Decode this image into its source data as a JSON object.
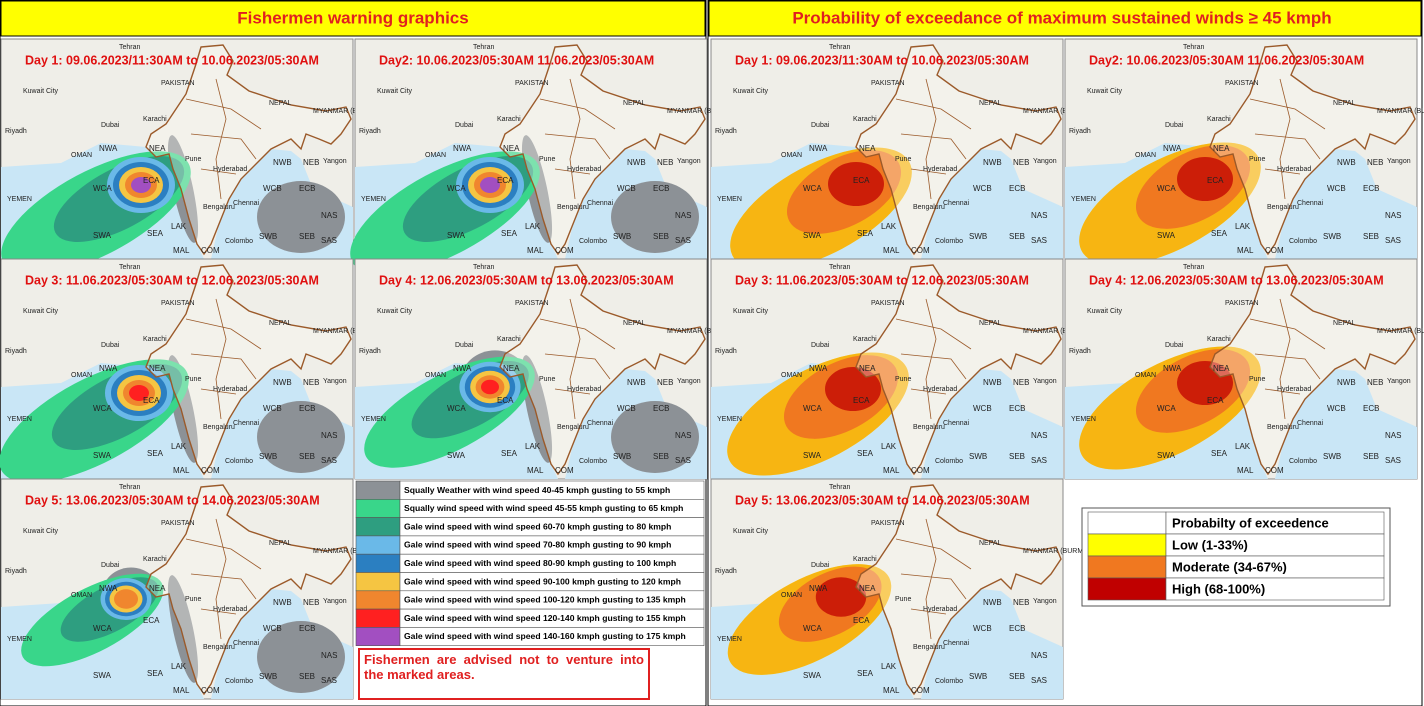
{
  "header_left": "Fishermen warning graphics",
  "header_right": "Probability  of exceedance of maximum sustained winds ≥ 45 kmph",
  "map_labels": [
    "Tehran",
    "Kuwait City",
    "Dubai",
    "Riyadh",
    "OMAN",
    "YEMEN",
    "PAKISTAN",
    "Karachi",
    "NEPAL",
    "MYANMAR (BURMA)",
    "Pune",
    "Hyderabad",
    "Bengaluru",
    "Chennai",
    "Colombo",
    "Yangon",
    "NWA",
    "NEA",
    "WCA",
    "ECA",
    "SWA",
    "SEA",
    "LAK",
    "MAL",
    "COM",
    "NWB",
    "NEB",
    "WCB",
    "ECB",
    "SWB",
    "SEB",
    "NAS",
    "SAS"
  ],
  "warning_panels": [
    "Day 1: 09.06.2023/11:30AM to 10.06.2023/05:30AM",
    "Day2: 10.06.2023/05:30AM 11.06.2023/05:30AM",
    "Day 3: 11.06.2023/05:30AM to 12.06.2023/05:30AM",
    "Day 4: 12.06.2023/05:30AM to 13.06.2023/05:30AM",
    "Day 5: 13.06.2023/05:30AM to 14.06.2023/05:30AM"
  ],
  "probability_panels": [
    "Day 1: 09.06.2023/11:30AM to 10.06.2023/05:30AM",
    "Day2: 10.06.2023/05:30AM 11.06.2023/05:30AM",
    "Day 3: 11.06.2023/05:30AM to 12.06.2023/05:30AM",
    "Day 4: 12.06.2023/05:30AM to 13.06.2023/05:30AM",
    "Day 5: 13.06.2023/05:30AM to 14.06.2023/05:30AM"
  ],
  "wind_legend": [
    {
      "label": "Squally Weather with wind speed 40-45 kmph gusting to 55 kmph",
      "color": "#8c9196"
    },
    {
      "label": "Squally wind speed with wind speed 45-55 kmph gusting to 65 kmph",
      "color": "#39d68a"
    },
    {
      "label": "Gale wind speed with wind speed 60-70 kmph gusting to 80 kmph",
      "color": "#2e9e80"
    },
    {
      "label": "Gale wind speed with wind speed 70-80  kmph gusting to 90 kmph",
      "color": "#6ab9e8"
    },
    {
      "label": "Gale wind speed with wind speed 80-90 kmph gusting to 100 kmph",
      "color": "#2b7fc1"
    },
    {
      "label": "Gale wind speed with wind speed 90-100 kmph gusting to 120 kmph",
      "color": "#f5c542"
    },
    {
      "label": "Gale wind speed with wind speed 100-120 kmph gusting to 135 kmph",
      "color": "#f0862e"
    },
    {
      "label": "Gale wind speed with wind speed 120-140 kmph gusting to 155 kmph",
      "color": "#ff2020"
    },
    {
      "label": "Gale wind speed with wind speed 140-160 kmph gusting to 175 kmph",
      "color": "#a24fc1"
    }
  ],
  "advice": "Fishermen are advised not to venture into the marked areas.",
  "probability_legend": {
    "title": "Probabilty of exceedence",
    "rows": [
      {
        "label": "Low (1-33%)",
        "color": "#ffff00"
      },
      {
        "label": "Moderate (34-67%)",
        "color": "#f07820"
      },
      {
        "label": "High (68-100%)",
        "color": "#c00000"
      }
    ]
  }
}
